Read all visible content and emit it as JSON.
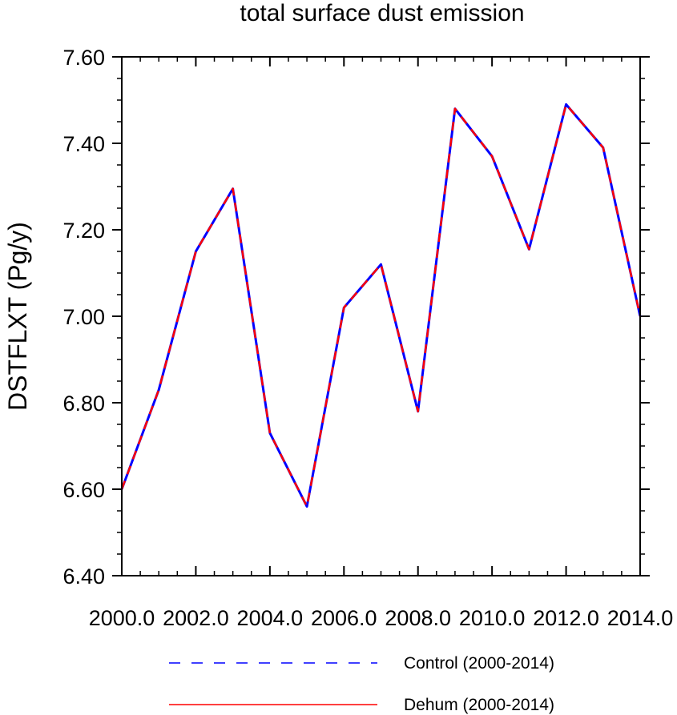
{
  "chart_data": {
    "type": "line",
    "title": "total surface dust emission",
    "xlabel": "",
    "ylabel": "DSTFLXT  (Pg/y)",
    "xlim": [
      2000,
      2014
    ],
    "ylim": [
      6.4,
      7.6
    ],
    "x_ticks": [
      2000,
      2002,
      2004,
      2006,
      2008,
      2010,
      2012,
      2014
    ],
    "x_tick_labels": [
      "2000.0",
      "2002.0",
      "2004.0",
      "2006.0",
      "2008.0",
      "2010.0",
      "2012.0",
      "2014.0"
    ],
    "y_ticks": [
      6.4,
      6.6,
      6.8,
      7.0,
      7.2,
      7.4,
      7.6
    ],
    "y_tick_labels": [
      "6.40",
      "6.60",
      "6.80",
      "7.00",
      "7.20",
      "7.40",
      "7.60"
    ],
    "y_minor_step": 0.05,
    "x_minor_step": 0.5,
    "x": [
      2000,
      2001,
      2002,
      2003,
      2004,
      2005,
      2006,
      2007,
      2008,
      2009,
      2010,
      2011,
      2012,
      2013,
      2014
    ],
    "series": [
      {
        "name": "Control (2000-2014)",
        "color": "#0000ff",
        "dash": "dashed",
        "values": [
          6.6,
          6.83,
          7.15,
          7.295,
          6.73,
          6.56,
          7.02,
          7.12,
          6.78,
          7.48,
          7.37,
          7.155,
          7.49,
          7.39,
          7.0
        ]
      },
      {
        "name": "Dehum (2000-2014)",
        "color": "#ff0000",
        "dash": "solid",
        "values": [
          6.6,
          6.83,
          7.15,
          7.295,
          6.73,
          6.56,
          7.02,
          7.12,
          6.78,
          7.48,
          7.37,
          7.155,
          7.49,
          7.39,
          7.0
        ]
      }
    ],
    "grid": false,
    "legend_position": "bottom"
  }
}
